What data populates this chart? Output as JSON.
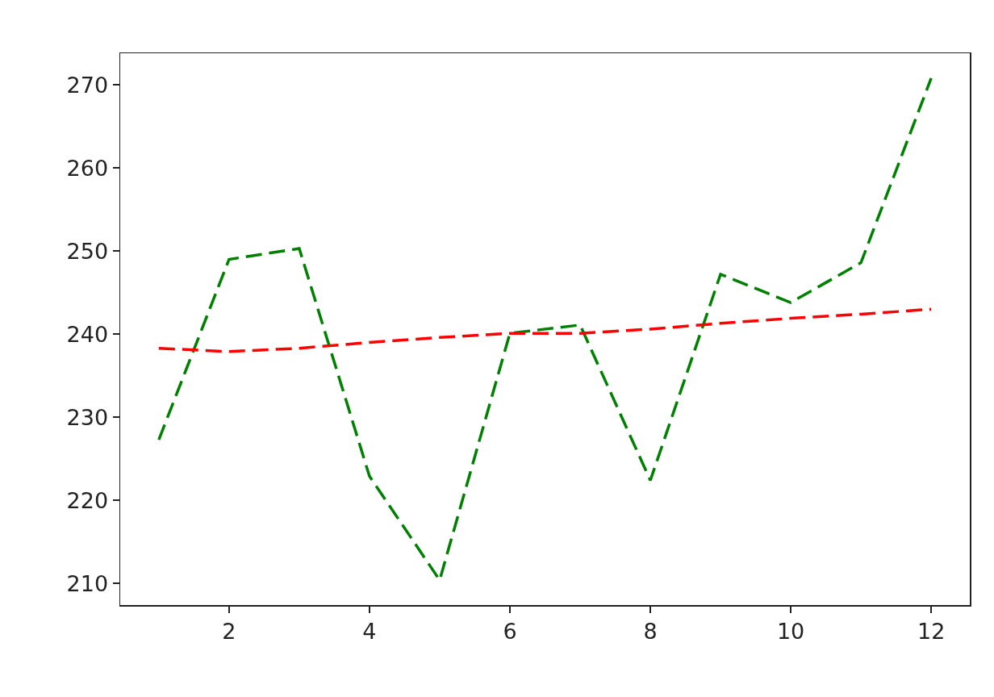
{
  "chart_data": {
    "type": "line",
    "x": [
      1,
      2,
      3,
      4,
      5,
      6,
      7,
      8,
      9,
      10,
      11,
      12
    ],
    "series": [
      {
        "color": "#008000",
        "values": [
          227.3,
          249.0,
          250.3,
          222.9,
          210.4,
          240.1,
          241.1,
          222.4,
          247.2,
          243.8,
          248.6,
          270.8
        ]
      },
      {
        "color": "#ff0000",
        "values": [
          238.3,
          237.9,
          238.3,
          239.0,
          239.6,
          240.1,
          240.1,
          240.6,
          241.3,
          241.9,
          242.4,
          243.0
        ]
      }
    ],
    "xlim": [
      0.45,
      12.55
    ],
    "xticks": [
      2,
      4,
      6,
      8,
      10,
      12
    ],
    "ylim": [
      207.4,
      273.8
    ],
    "yticks": [
      210,
      220,
      230,
      240,
      250,
      260,
      270
    ],
    "line_style": "dashed"
  }
}
